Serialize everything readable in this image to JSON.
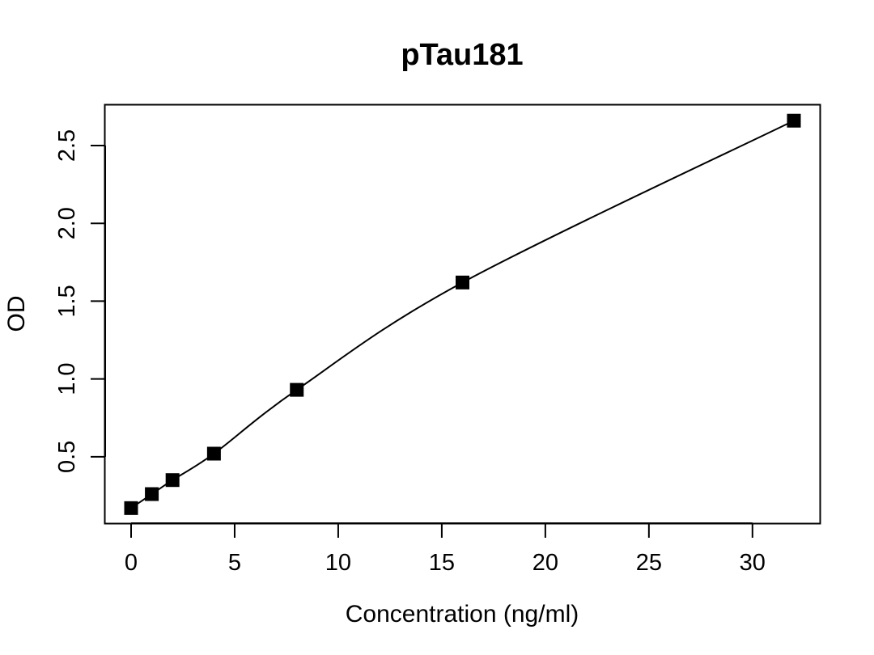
{
  "chart_data": {
    "type": "scatter",
    "title": "pTau181",
    "xlabel": "Concentration (ng/ml)",
    "ylabel": "OD",
    "xlim": [
      -1.25,
      33.25
    ],
    "ylim": [
      0.073,
      2.76
    ],
    "xticks": [
      0,
      5,
      10,
      15,
      20,
      25,
      30
    ],
    "xtick_labels": [
      "0",
      "5",
      "10",
      "15",
      "20",
      "25",
      "30"
    ],
    "yticks": [
      0.5,
      1.0,
      1.5,
      2.0,
      2.5
    ],
    "ytick_labels": [
      "0.5",
      "1.0",
      "1.5",
      "2.0",
      "2.5"
    ],
    "grid": false,
    "legend": "none",
    "marker": "square",
    "fit_line": "smooth curve",
    "series": [
      {
        "x": [
          0,
          1,
          2,
          4,
          8,
          16,
          32
        ],
        "y": [
          0.17,
          0.26,
          0.35,
          0.52,
          0.93,
          1.62,
          2.66
        ]
      }
    ],
    "colors": {
      "marker": "#000000",
      "line": "#000000",
      "background": "#ffffff"
    }
  }
}
